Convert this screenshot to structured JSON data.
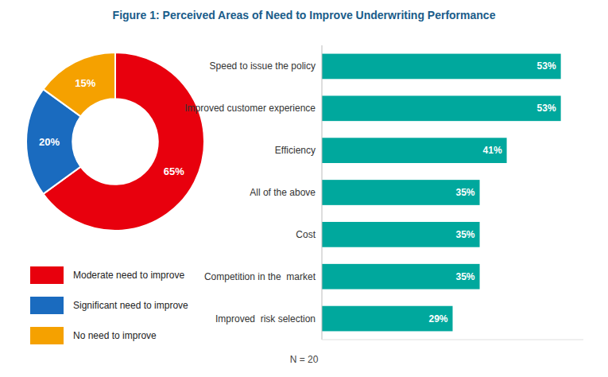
{
  "chart_data": [
    {
      "type": "pie",
      "title": "Figure 1: Perceived Areas of Need to Improve Underwriting Performance",
      "categories": [
        "Moderate need to improve",
        "Significant need to improve",
        "No need to improve"
      ],
      "values": [
        65,
        20,
        15
      ],
      "value_labels": [
        "65%",
        "20%",
        "15%"
      ],
      "colors": [
        "#e8000d",
        "#1a6bbf",
        "#f5a100"
      ],
      "data_labels": true,
      "legend": "bottom"
    },
    {
      "type": "bar",
      "orientation": "horizontal",
      "categories": [
        "Speed to issue the policy",
        "Improved customer experience",
        "Efficiency",
        "All of the above",
        "Cost",
        "Competition in the  market",
        "Improved  risk selection"
      ],
      "values": [
        53,
        53,
        41,
        35,
        35,
        35,
        29
      ],
      "value_labels": [
        "53%",
        "53%",
        "41%",
        "35%",
        "35%",
        "35%",
        "29%"
      ],
      "color": "#00a89d",
      "xlim": [
        0,
        58
      ],
      "data_labels": true,
      "tick_labels": "y",
      "grid": false,
      "annotations": [
        "N = 20"
      ]
    }
  ]
}
